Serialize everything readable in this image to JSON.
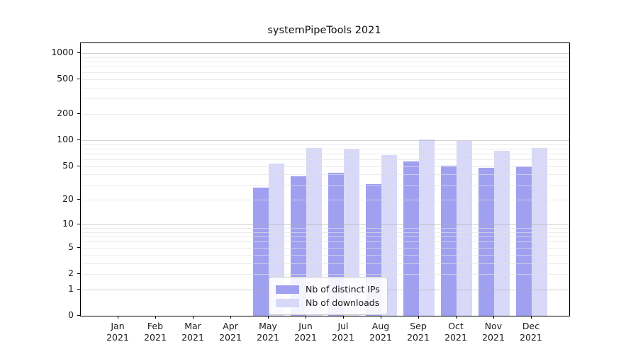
{
  "title": "systemPipeTools 2021",
  "chart_data": {
    "type": "bar",
    "scale": "log10(1+y)",
    "categories": [
      "Jan 2021",
      "Feb 2021",
      "Mar 2021",
      "Apr 2021",
      "May 2021",
      "Jun 2021",
      "Jul 2021",
      "Aug 2021",
      "Sep 2021",
      "Oct 2021",
      "Nov 2021",
      "Dec 2021"
    ],
    "series": [
      {
        "name": "Nb of distinct IPs",
        "color": "#a0a0f0",
        "values": [
          0,
          0,
          0,
          0,
          28,
          38,
          42,
          31,
          57,
          51,
          48,
          50
        ]
      },
      {
        "name": "Nb of downloads",
        "color": "#d8d8f8",
        "values": [
          0,
          0,
          0,
          0,
          54,
          82,
          80,
          67,
          102,
          98,
          75,
          82
        ]
      }
    ],
    "yticks": [
      0,
      1,
      2,
      5,
      10,
      20,
      50,
      100,
      200,
      500,
      1000
    ],
    "ylim": [
      0,
      1300
    ],
    "grid": "on",
    "legend_position": "inside-bottom-center",
    "xlabel": "",
    "ylabel": ""
  }
}
